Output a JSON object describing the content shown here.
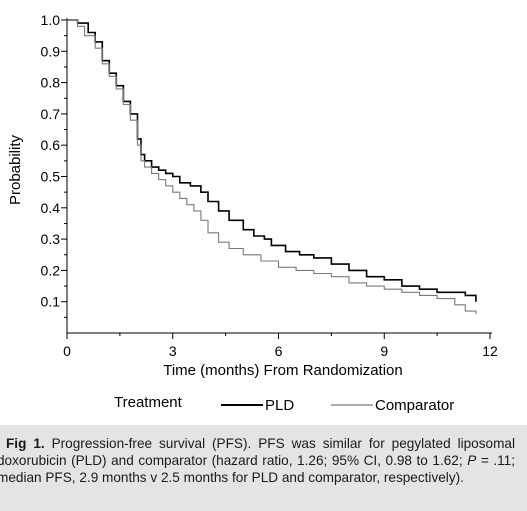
{
  "chart_data": {
    "type": "line",
    "title": "",
    "xlabel": "Time (months) From Randomization",
    "ylabel": "Probability",
    "xlim": [
      0,
      12
    ],
    "ylim": [
      0,
      1.0
    ],
    "x_ticks": [
      "0",
      "3",
      "6",
      "9",
      "12"
    ],
    "y_ticks": [
      "0.1",
      "0.2",
      "0.3",
      "0.4",
      "0.5",
      "0.6",
      "0.7",
      "0.8",
      "0.9",
      "1.0"
    ],
    "grid": false,
    "step": true,
    "legend_title": "Treatment",
    "legend_position": "bottom",
    "series": [
      {
        "name": "PLD",
        "color": "#000000",
        "x": [
          0,
          0.3,
          0.6,
          0.8,
          1.0,
          1.2,
          1.4,
          1.6,
          1.8,
          2.0,
          2.1,
          2.2,
          2.4,
          2.6,
          2.8,
          3.0,
          3.2,
          3.5,
          3.8,
          4.0,
          4.3,
          4.6,
          5.0,
          5.3,
          5.6,
          5.8,
          6.2,
          6.6,
          7.0,
          7.5,
          8.0,
          8.5,
          9.0,
          9.5,
          10.0,
          10.5,
          11.0,
          11.3,
          11.6
        ],
        "y": [
          1.0,
          0.99,
          0.96,
          0.93,
          0.87,
          0.83,
          0.79,
          0.74,
          0.7,
          0.62,
          0.57,
          0.55,
          0.53,
          0.52,
          0.51,
          0.5,
          0.48,
          0.47,
          0.45,
          0.42,
          0.39,
          0.36,
          0.33,
          0.31,
          0.3,
          0.28,
          0.26,
          0.25,
          0.24,
          0.22,
          0.2,
          0.18,
          0.17,
          0.15,
          0.14,
          0.13,
          0.13,
          0.12,
          0.1
        ]
      },
      {
        "name": "Comparator",
        "color": "#7a7a7a",
        "x": [
          0,
          0.3,
          0.5,
          0.8,
          1.0,
          1.2,
          1.4,
          1.6,
          1.8,
          2.0,
          2.1,
          2.2,
          2.4,
          2.6,
          2.8,
          3.0,
          3.2,
          3.4,
          3.6,
          3.8,
          4.0,
          4.3,
          4.6,
          5.0,
          5.5,
          6.0,
          6.5,
          7.0,
          7.5,
          8.0,
          8.5,
          9.0,
          9.5,
          10.0,
          10.5,
          11.0,
          11.3,
          11.6
        ],
        "y": [
          1.0,
          0.98,
          0.95,
          0.91,
          0.86,
          0.82,
          0.78,
          0.73,
          0.68,
          0.6,
          0.55,
          0.53,
          0.51,
          0.49,
          0.47,
          0.45,
          0.43,
          0.41,
          0.39,
          0.36,
          0.32,
          0.29,
          0.27,
          0.25,
          0.23,
          0.21,
          0.2,
          0.19,
          0.18,
          0.16,
          0.15,
          0.14,
          0.13,
          0.12,
          0.11,
          0.09,
          0.07,
          0.06
        ]
      }
    ]
  },
  "caption": {
    "label": "Fig 1.",
    "text_before_p": " Progression-free survival (PFS). PFS was similar for pegylated liposomal doxorubicin (PLD) and comparator (hazard ratio, 1.26; 95% CI, 0.98 to 1.62; ",
    "p_symbol": "P",
    "text_after_p": " = .11; median PFS, 2.9 months v 2.5 months for PLD and comparator, respectively)."
  }
}
